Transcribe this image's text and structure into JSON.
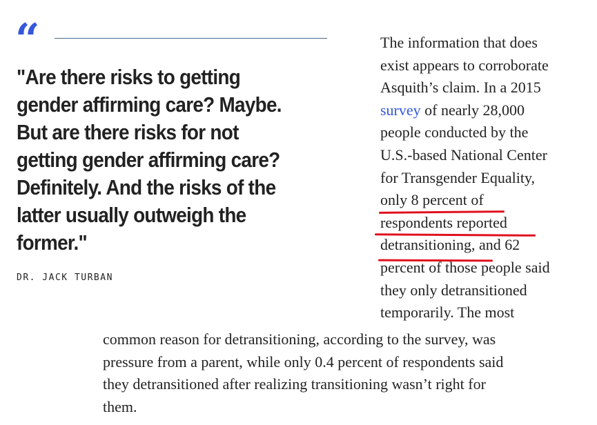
{
  "quote": {
    "mark": "“",
    "text": "\"Are there risks to getting gender affirming care? Maybe. But are there risks for not getting gender affirming care? Definitely. And the risks of the latter usually outweigh the former.\"",
    "attribution": "DR. JACK TURBAN"
  },
  "body": {
    "right_column": {
      "l1": "The information that does",
      "l2": "exist appears to corroborate",
      "l3": "Asquith’s claim. In a 2015",
      "l4_link": "survey",
      "l4_rest": " of nearly 28,000",
      "l5": "people conducted by the",
      "l6": "U.S.-based National Center",
      "l7": "for Transgender Equality,",
      "l8": "only 8 percent of",
      "l9": "respondents reported",
      "l10_a": "detransitioning,",
      "l10_b": " and 62",
      "l11": "percent of those people said",
      "l12": "they only detransitioned",
      "l13": "temporarily. The most"
    },
    "full_width": {
      "l1": "common reason for detransitioning, according to the survey, was",
      "l2": "pressure from a parent, while only 0.4 percent of respondents said",
      "l3": "they detransitioned after realizing transitioning wasn’t right for",
      "l4": "them."
    }
  },
  "colors": {
    "accent": "#3457dc",
    "rule": "#4a6691",
    "highlight_underline": "#e0101e",
    "text": "#222222"
  }
}
